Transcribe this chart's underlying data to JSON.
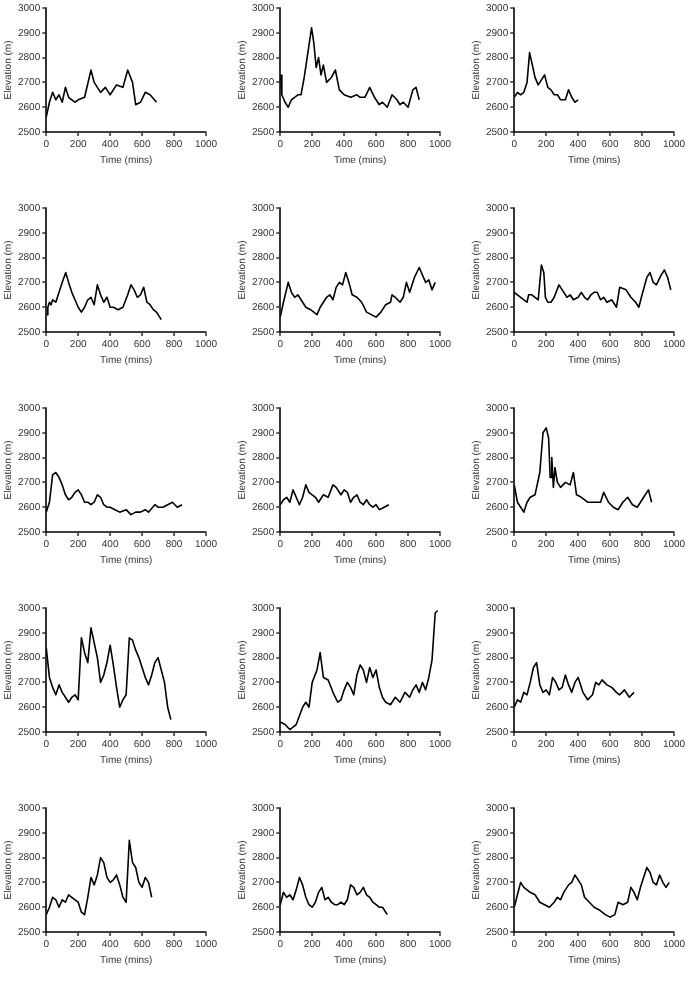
{
  "chart_data": [
    {
      "type": "line",
      "xlabel": "Time (mins)",
      "ylabel": "Elevation (m)",
      "xlim": [
        0,
        1000
      ],
      "ylim": [
        2500,
        3000
      ],
      "xticks": [
        0,
        200,
        400,
        600,
        800,
        1000
      ],
      "yticks": [
        2500,
        2600,
        2700,
        2800,
        2900,
        3000
      ],
      "grid": false,
      "marker": "none",
      "line_style": "solid",
      "series": [
        {
          "color": "#000000",
          "x": [
            0,
            20,
            40,
            60,
            80,
            100,
            120,
            140,
            160,
            180,
            200,
            240,
            280,
            300,
            340,
            370,
            400,
            440,
            480,
            510,
            540,
            560,
            590,
            620,
            650,
            690
          ],
          "values": [
            2560,
            2620,
            2660,
            2630,
            2650,
            2620,
            2680,
            2640,
            2630,
            2620,
            2630,
            2640,
            2750,
            2700,
            2660,
            2680,
            2650,
            2690,
            2680,
            2750,
            2700,
            2610,
            2620,
            2660,
            2650,
            2620
          ]
        }
      ]
    },
    {
      "type": "line",
      "xlabel": "Time (mins)",
      "ylabel": "Elevation (m)",
      "xlim": [
        0,
        1000
      ],
      "ylim": [
        2500,
        3000
      ],
      "xticks": [
        0,
        200,
        400,
        600,
        800,
        1000
      ],
      "yticks": [
        2500,
        2600,
        2700,
        2800,
        2900,
        3000
      ],
      "grid": false,
      "marker": "none",
      "line_style": "solid",
      "series": [
        {
          "color": "#000000",
          "x": [
            0,
            10,
            30,
            50,
            70,
            90,
            110,
            130,
            150,
            180,
            196,
            210,
            225,
            240,
            255,
            270,
            290,
            320,
            345,
            370,
            400,
            440,
            480,
            500,
            530,
            560,
            590,
            620,
            640,
            670,
            700,
            730,
            750,
            770,
            800,
            830,
            850,
            870
          ],
          "values": [
            2730,
            2650,
            2620,
            2600,
            2630,
            2640,
            2650,
            2650,
            2720,
            2850,
            2920,
            2860,
            2760,
            2800,
            2730,
            2770,
            2700,
            2720,
            2750,
            2670,
            2650,
            2640,
            2650,
            2640,
            2640,
            2680,
            2640,
            2610,
            2620,
            2600,
            2650,
            2630,
            2610,
            2620,
            2600,
            2670,
            2680,
            2630
          ]
        }
      ]
    },
    {
      "type": "line",
      "xlabel": "Time (mins)",
      "ylabel": "Elevation (m)",
      "xlim": [
        0,
        1000
      ],
      "ylim": [
        2500,
        3000
      ],
      "xticks": [
        0,
        200,
        400,
        600,
        800,
        1000
      ],
      "yticks": [
        2500,
        2600,
        2700,
        2800,
        2900,
        3000
      ],
      "grid": false,
      "marker": "none",
      "line_style": "solid",
      "series": [
        {
          "color": "#000000",
          "x": [
            0,
            20,
            40,
            60,
            80,
            96,
            110,
            130,
            150,
            170,
            190,
            210,
            230,
            250,
            270,
            290,
            320,
            340,
            360,
            380,
            400
          ],
          "values": [
            2640,
            2660,
            2650,
            2660,
            2700,
            2820,
            2780,
            2720,
            2690,
            2710,
            2730,
            2680,
            2670,
            2650,
            2650,
            2630,
            2630,
            2670,
            2640,
            2620,
            2630
          ]
        }
      ]
    },
    {
      "type": "line",
      "xlabel": "Time (mins)",
      "ylabel": "Elevation (m)",
      "xlim": [
        0,
        1000
      ],
      "ylim": [
        2500,
        3000
      ],
      "xticks": [
        0,
        200,
        400,
        600,
        800,
        1000
      ],
      "yticks": [
        2500,
        2600,
        2700,
        2800,
        2900,
        3000
      ],
      "grid": false,
      "marker": "none",
      "line_style": "solid",
      "series": [
        {
          "color": "#000000",
          "x": [
            0,
            10,
            20,
            30,
            40,
            60,
            80,
            100,
            122,
            140,
            160,
            180,
            200,
            220,
            240,
            260,
            280,
            300,
            320,
            340,
            360,
            380,
            400,
            420,
            450,
            480,
            510,
            530,
            550,
            570,
            590,
            610,
            630,
            650,
            670,
            690,
            710,
            720
          ],
          "values": [
            2570,
            2600,
            2620,
            2610,
            2630,
            2620,
            2660,
            2700,
            2740,
            2700,
            2660,
            2630,
            2600,
            2580,
            2600,
            2630,
            2640,
            2610,
            2690,
            2650,
            2620,
            2640,
            2600,
            2600,
            2590,
            2600,
            2650,
            2690,
            2670,
            2640,
            2650,
            2680,
            2620,
            2610,
            2590,
            2580,
            2560,
            2550
          ]
        }
      ]
    },
    {
      "type": "line",
      "xlabel": "Time (mins)",
      "ylabel": "Elevation (m)",
      "xlim": [
        0,
        1000
      ],
      "ylim": [
        2500,
        3000
      ],
      "xticks": [
        0,
        200,
        400,
        600,
        800,
        1000
      ],
      "yticks": [
        2500,
        2600,
        2700,
        2800,
        2900,
        3000
      ],
      "grid": false,
      "marker": "none",
      "line_style": "solid",
      "series": [
        {
          "color": "#000000",
          "x": [
            0,
            20,
            50,
            70,
            90,
            110,
            130,
            160,
            190,
            210,
            230,
            250,
            270,
            290,
            310,
            330,
            350,
            370,
            390,
            410,
            430,
            450,
            480,
            510,
            540,
            570,
            600,
            630,
            660,
            690,
            700,
            720,
            750,
            770,
            790,
            810,
            840,
            870,
            890,
            910,
            930,
            950,
            970
          ],
          "values": [
            2560,
            2620,
            2700,
            2660,
            2640,
            2650,
            2630,
            2600,
            2590,
            2580,
            2570,
            2600,
            2620,
            2640,
            2650,
            2630,
            2680,
            2700,
            2690,
            2740,
            2700,
            2650,
            2640,
            2620,
            2580,
            2570,
            2560,
            2580,
            2610,
            2620,
            2650,
            2640,
            2620,
            2640,
            2700,
            2660,
            2720,
            2760,
            2730,
            2700,
            2710,
            2670,
            2700
          ]
        }
      ]
    },
    {
      "type": "line",
      "xlabel": "Time (mins)",
      "ylabel": "Elevation (m)",
      "xlim": [
        0,
        1000
      ],
      "ylim": [
        2500,
        3000
      ],
      "xticks": [
        0,
        200,
        400,
        600,
        800,
        1000
      ],
      "yticks": [
        2500,
        2600,
        2700,
        2800,
        2900,
        3000
      ],
      "grid": false,
      "marker": "none",
      "line_style": "solid",
      "series": [
        {
          "color": "#000000",
          "x": [
            0,
            20,
            40,
            60,
            80,
            90,
            110,
            130,
            150,
            170,
            185,
            195,
            210,
            230,
            250,
            280,
            300,
            330,
            350,
            370,
            400,
            420,
            440,
            460,
            480,
            500,
            520,
            540,
            560,
            580,
            610,
            640,
            660,
            700,
            730,
            760,
            780,
            800,
            830,
            850,
            870,
            890,
            920,
            940,
            960,
            980
          ],
          "values": [
            2660,
            2650,
            2640,
            2630,
            2620,
            2650,
            2650,
            2640,
            2630,
            2770,
            2740,
            2640,
            2620,
            2620,
            2640,
            2690,
            2670,
            2640,
            2650,
            2630,
            2640,
            2660,
            2640,
            2630,
            2650,
            2660,
            2660,
            2630,
            2640,
            2620,
            2630,
            2600,
            2680,
            2670,
            2640,
            2620,
            2600,
            2650,
            2720,
            2740,
            2700,
            2690,
            2730,
            2750,
            2720,
            2670
          ]
        }
      ]
    },
    {
      "type": "line",
      "xlabel": "Time (mins)",
      "ylabel": "Elevation (m)",
      "xlim": [
        0,
        1000
      ],
      "ylim": [
        2500,
        3000
      ],
      "xticks": [
        0,
        200,
        400,
        600,
        800,
        1000
      ],
      "yticks": [
        2500,
        2600,
        2700,
        2800,
        2900,
        3000
      ],
      "grid": false,
      "marker": "none",
      "line_style": "solid",
      "series": [
        {
          "color": "#000000",
          "x": [
            0,
            20,
            40,
            60,
            80,
            100,
            120,
            140,
            160,
            180,
            200,
            220,
            240,
            260,
            280,
            300,
            320,
            340,
            360,
            380,
            400,
            430,
            460,
            500,
            530,
            560,
            590,
            620,
            640,
            680,
            700,
            730,
            760,
            790,
            820,
            850
          ],
          "values": [
            2580,
            2620,
            2730,
            2740,
            2720,
            2690,
            2650,
            2630,
            2640,
            2660,
            2670,
            2650,
            2620,
            2620,
            2610,
            2620,
            2650,
            2640,
            2610,
            2600,
            2600,
            2590,
            2580,
            2590,
            2570,
            2580,
            2580,
            2590,
            2580,
            2610,
            2600,
            2600,
            2610,
            2620,
            2600,
            2610
          ]
        }
      ]
    },
    {
      "type": "line",
      "xlabel": "Time (mins)",
      "ylabel": "Elevation (m)",
      "xlim": [
        0,
        1000
      ],
      "ylim": [
        2500,
        3000
      ],
      "xticks": [
        0,
        200,
        400,
        600,
        800,
        1000
      ],
      "yticks": [
        2500,
        2600,
        2700,
        2800,
        2900,
        3000
      ],
      "grid": false,
      "marker": "none",
      "line_style": "solid",
      "series": [
        {
          "color": "#000000",
          "x": [
            0,
            20,
            40,
            60,
            80,
            100,
            120,
            140,
            160,
            180,
            200,
            220,
            240,
            270,
            300,
            330,
            350,
            380,
            400,
            420,
            440,
            460,
            480,
            500,
            520,
            540,
            560,
            580,
            600,
            620,
            650,
            680
          ],
          "values": [
            2610,
            2630,
            2640,
            2620,
            2670,
            2640,
            2610,
            2640,
            2690,
            2660,
            2650,
            2640,
            2620,
            2650,
            2640,
            2690,
            2680,
            2650,
            2670,
            2660,
            2620,
            2640,
            2650,
            2620,
            2610,
            2630,
            2610,
            2600,
            2610,
            2590,
            2600,
            2610
          ]
        }
      ]
    },
    {
      "type": "line",
      "xlabel": "Time (mins)",
      "ylabel": "Elevation (m)",
      "xlim": [
        0,
        1000
      ],
      "ylim": [
        2500,
        3000
      ],
      "xticks": [
        0,
        200,
        400,
        600,
        800,
        1000
      ],
      "yticks": [
        2500,
        2600,
        2700,
        2800,
        2900,
        3000
      ],
      "grid": false,
      "marker": "none",
      "line_style": "solid",
      "series": [
        {
          "color": "#000000",
          "x": [
            0,
            20,
            40,
            60,
            80,
            100,
            130,
            160,
            180,
            200,
            215,
            225,
            235,
            245,
            255,
            270,
            290,
            320,
            350,
            370,
            390,
            420,
            460,
            500,
            540,
            560,
            590,
            620,
            650,
            680,
            710,
            740,
            770,
            810,
            840,
            860
          ],
          "values": [
            2690,
            2620,
            2600,
            2580,
            2620,
            2640,
            2650,
            2740,
            2900,
            2920,
            2880,
            2720,
            2800,
            2680,
            2760,
            2700,
            2680,
            2700,
            2690,
            2740,
            2650,
            2640,
            2620,
            2620,
            2620,
            2660,
            2620,
            2600,
            2590,
            2620,
            2640,
            2610,
            2600,
            2640,
            2670,
            2620
          ]
        }
      ]
    },
    {
      "type": "line",
      "xlabel": "Time (mins)",
      "ylabel": "Elevation (m)",
      "xlim": [
        0,
        1000
      ],
      "ylim": [
        2500,
        3000
      ],
      "xticks": [
        0,
        200,
        400,
        600,
        800,
        1000
      ],
      "yticks": [
        2500,
        2600,
        2700,
        2800,
        2900,
        3000
      ],
      "grid": false,
      "marker": "none",
      "line_style": "solid",
      "series": [
        {
          "color": "#000000",
          "x": [
            0,
            20,
            40,
            60,
            80,
            100,
            120,
            140,
            160,
            180,
            200,
            220,
            240,
            260,
            280,
            300,
            320,
            340,
            360,
            380,
            400,
            420,
            440,
            460,
            480,
            500,
            520,
            540,
            560,
            580,
            600,
            620,
            640,
            660,
            680,
            700,
            720,
            740,
            760,
            780
          ],
          "values": [
            2840,
            2720,
            2680,
            2650,
            2690,
            2660,
            2640,
            2620,
            2640,
            2650,
            2630,
            2880,
            2820,
            2780,
            2920,
            2860,
            2800,
            2700,
            2730,
            2780,
            2850,
            2770,
            2680,
            2600,
            2630,
            2650,
            2880,
            2870,
            2830,
            2800,
            2760,
            2720,
            2690,
            2730,
            2780,
            2800,
            2750,
            2700,
            2600,
            2550
          ]
        }
      ]
    },
    {
      "type": "line",
      "xlabel": "Time (mins)",
      "ylabel": "Elevation (m)",
      "xlim": [
        0,
        1000
      ],
      "ylim": [
        2500,
        3000
      ],
      "xticks": [
        0,
        200,
        400,
        600,
        800,
        1000
      ],
      "yticks": [
        2500,
        2600,
        2700,
        2800,
        2900,
        3000
      ],
      "grid": false,
      "marker": "none",
      "line_style": "solid",
      "series": [
        {
          "color": "#000000",
          "x": [
            0,
            30,
            60,
            100,
            140,
            160,
            180,
            200,
            230,
            250,
            270,
            300,
            330,
            360,
            380,
            400,
            420,
            440,
            460,
            480,
            500,
            520,
            540,
            560,
            580,
            600,
            620,
            640,
            660,
            690,
            720,
            750,
            780,
            810,
            830,
            850,
            870,
            890,
            910,
            930,
            950,
            970,
            985
          ],
          "values": [
            2540,
            2530,
            2510,
            2530,
            2600,
            2620,
            2600,
            2700,
            2750,
            2820,
            2720,
            2710,
            2660,
            2620,
            2630,
            2670,
            2700,
            2680,
            2650,
            2730,
            2770,
            2750,
            2700,
            2760,
            2720,
            2750,
            2680,
            2640,
            2620,
            2610,
            2640,
            2620,
            2660,
            2640,
            2670,
            2690,
            2660,
            2700,
            2670,
            2720,
            2790,
            2980,
            2990
          ]
        }
      ]
    },
    {
      "type": "line",
      "xlabel": "Time (mins)",
      "ylabel": "Elevation (m)",
      "xlim": [
        0,
        1000
      ],
      "ylim": [
        2500,
        3000
      ],
      "xticks": [
        0,
        200,
        400,
        600,
        800,
        1000
      ],
      "yticks": [
        2500,
        2600,
        2700,
        2800,
        2900,
        3000
      ],
      "grid": false,
      "marker": "none",
      "line_style": "solid",
      "series": [
        {
          "color": "#000000",
          "x": [
            0,
            20,
            40,
            60,
            80,
            100,
            120,
            140,
            160,
            180,
            200,
            220,
            240,
            260,
            280,
            300,
            320,
            340,
            360,
            380,
            400,
            430,
            460,
            490,
            510,
            530,
            550,
            580,
            610,
            640,
            660,
            690,
            720,
            750
          ],
          "values": [
            2600,
            2630,
            2620,
            2660,
            2650,
            2700,
            2760,
            2780,
            2690,
            2660,
            2670,
            2650,
            2720,
            2700,
            2670,
            2680,
            2730,
            2690,
            2660,
            2700,
            2720,
            2660,
            2630,
            2650,
            2700,
            2690,
            2710,
            2690,
            2680,
            2660,
            2650,
            2670,
            2640,
            2660
          ]
        }
      ]
    },
    {
      "type": "line",
      "xlabel": "Time (mins)",
      "ylabel": "Elevation (m)",
      "xlim": [
        0,
        1000
      ],
      "ylim": [
        2500,
        3000
      ],
      "xticks": [
        0,
        200,
        400,
        600,
        800,
        1000
      ],
      "yticks": [
        2500,
        2600,
        2700,
        2800,
        2900,
        3000
      ],
      "grid": false,
      "marker": "none",
      "line_style": "solid",
      "series": [
        {
          "color": "#000000",
          "x": [
            0,
            20,
            40,
            60,
            80,
            100,
            120,
            140,
            160,
            180,
            200,
            220,
            240,
            260,
            280,
            300,
            320,
            340,
            360,
            380,
            400,
            420,
            440,
            460,
            480,
            500,
            520,
            540,
            560,
            580,
            600,
            620,
            640,
            660
          ],
          "values": [
            2570,
            2600,
            2640,
            2630,
            2600,
            2630,
            2620,
            2650,
            2640,
            2630,
            2620,
            2580,
            2570,
            2640,
            2720,
            2690,
            2730,
            2800,
            2780,
            2720,
            2700,
            2710,
            2730,
            2690,
            2640,
            2620,
            2870,
            2780,
            2760,
            2700,
            2680,
            2720,
            2700,
            2640
          ]
        }
      ]
    },
    {
      "type": "line",
      "xlabel": "Time (mins)",
      "ylabel": "Elevation (m)",
      "xlim": [
        0,
        1000
      ],
      "ylim": [
        2500,
        3000
      ],
      "xticks": [
        0,
        200,
        400,
        600,
        800,
        1000
      ],
      "yticks": [
        2500,
        2600,
        2700,
        2800,
        2900,
        3000
      ],
      "grid": false,
      "marker": "none",
      "line_style": "solid",
      "series": [
        {
          "color": "#000000",
          "x": [
            0,
            20,
            40,
            60,
            80,
            100,
            120,
            140,
            160,
            180,
            200,
            220,
            240,
            260,
            280,
            300,
            320,
            340,
            360,
            380,
            400,
            420,
            440,
            460,
            480,
            500,
            520,
            540,
            560,
            580,
            600,
            620,
            640,
            670
          ],
          "values": [
            2610,
            2660,
            2640,
            2650,
            2630,
            2670,
            2720,
            2690,
            2640,
            2610,
            2600,
            2620,
            2660,
            2680,
            2630,
            2640,
            2620,
            2610,
            2610,
            2620,
            2610,
            2630,
            2690,
            2680,
            2650,
            2660,
            2680,
            2650,
            2640,
            2620,
            2610,
            2600,
            2600,
            2570
          ]
        }
      ]
    },
    {
      "type": "line",
      "xlabel": "Time (mins)",
      "ylabel": "Elevation (m)",
      "xlim": [
        0,
        1000
      ],
      "ylim": [
        2500,
        3000
      ],
      "xticks": [
        0,
        200,
        400,
        600,
        800,
        1000
      ],
      "yticks": [
        2500,
        2600,
        2700,
        2800,
        2900,
        3000
      ],
      "grid": false,
      "marker": "none",
      "line_style": "solid",
      "series": [
        {
          "color": "#000000",
          "x": [
            0,
            20,
            40,
            60,
            80,
            100,
            130,
            160,
            190,
            220,
            250,
            270,
            290,
            310,
            340,
            360,
            380,
            400,
            420,
            440,
            470,
            500,
            530,
            570,
            600,
            630,
            650,
            680,
            710,
            730,
            750,
            770,
            790,
            810,
            830,
            850,
            870,
            890,
            910,
            930,
            950,
            970
          ],
          "values": [
            2600,
            2650,
            2700,
            2680,
            2670,
            2660,
            2650,
            2620,
            2610,
            2600,
            2620,
            2640,
            2630,
            2660,
            2690,
            2700,
            2730,
            2710,
            2690,
            2640,
            2620,
            2600,
            2590,
            2570,
            2560,
            2570,
            2620,
            2610,
            2620,
            2680,
            2660,
            2630,
            2680,
            2720,
            2760,
            2740,
            2700,
            2690,
            2730,
            2700,
            2680,
            2700
          ]
        }
      ]
    }
  ]
}
